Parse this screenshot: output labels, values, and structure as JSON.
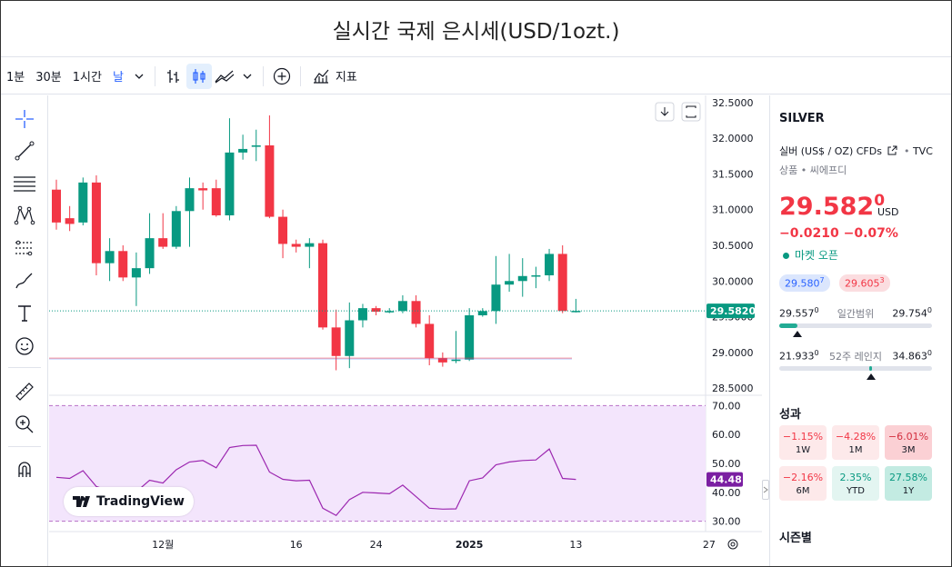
{
  "title": "실시간 국제 은시세(USD/1ozt.)",
  "toolbar": {
    "intervals": [
      "1분",
      "30분",
      "1시간"
    ],
    "active_interval": "날",
    "indicators_label": "지표"
  },
  "sidebar": {
    "symbol": "SILVER",
    "description": "실버 (US$ / OZ) CFDs",
    "source": "TVC",
    "category": "상품 • 씨에프디",
    "price_main": "29.582",
    "price_small": "0",
    "currency": "USD",
    "change": "−0.0210  −0.07%",
    "market_status": "마켓 오픈",
    "bid": "29.580",
    "bid_sup": "7",
    "ask": "29.605",
    "ask_sup": "3",
    "day_range": {
      "low": "29.557",
      "low_sup": "0",
      "label": "일간범위",
      "high": "29.754",
      "high_sup": "0"
    },
    "week52_range": {
      "low": "21.933",
      "low_sup": "0",
      "label": "52주 레인지",
      "high": "34.863",
      "high_sup": "0"
    },
    "day_range_fill": 0.12,
    "week52_position": 0.59,
    "performance_title": "성과",
    "performance": [
      {
        "value": "−1.15%",
        "period": "1W",
        "tone": "neg1"
      },
      {
        "value": "−4.28%",
        "period": "1M",
        "tone": "neg1"
      },
      {
        "value": "−6.01%",
        "period": "3M",
        "tone": "neg2"
      },
      {
        "value": "−2.16%",
        "period": "6M",
        "tone": "neg1"
      },
      {
        "value": "2.35%",
        "period": "YTD",
        "tone": "pos1"
      },
      {
        "value": "27.58%",
        "period": "1Y",
        "tone": "pos2"
      }
    ],
    "seasonal_title": "시즌별"
  },
  "logo_text": "TradingView",
  "colors": {
    "up": "#089981",
    "down": "#f23645",
    "rsi": "#9c27b0",
    "rsi_band": "#f3e5fc",
    "price_line": "#089981"
  },
  "chart_data": [
    {
      "type": "candlestick",
      "ylim": [
        28.4,
        32.6
      ],
      "y_ticks": [
        "32.5000",
        "32.0000",
        "31.5000",
        "31.0000",
        "30.5000",
        "30.0000",
        "29.5000",
        "29.0000",
        "28.5000"
      ],
      "last_price_label": "29.5820",
      "last_price": 29.582,
      "x_tick_labels": [
        "12월",
        "16",
        "24",
        "2025",
        "13",
        "27"
      ],
      "candles": [
        {
          "o": 31.28,
          "h": 31.42,
          "l": 30.72,
          "c": 30.82
        },
        {
          "o": 30.88,
          "h": 31.05,
          "l": 30.7,
          "c": 30.8
        },
        {
          "o": 30.82,
          "h": 31.45,
          "l": 30.78,
          "c": 31.38
        },
        {
          "o": 31.38,
          "h": 31.48,
          "l": 30.08,
          "c": 30.25
        },
        {
          "o": 30.25,
          "h": 30.6,
          "l": 30.0,
          "c": 30.42
        },
        {
          "o": 30.42,
          "h": 30.5,
          "l": 30.0,
          "c": 30.05
        },
        {
          "o": 30.05,
          "h": 30.4,
          "l": 29.65,
          "c": 30.18
        },
        {
          "o": 30.18,
          "h": 30.95,
          "l": 30.1,
          "c": 30.6
        },
        {
          "o": 30.6,
          "h": 30.95,
          "l": 30.45,
          "c": 30.48
        },
        {
          "o": 30.48,
          "h": 31.05,
          "l": 30.45,
          "c": 30.98
        },
        {
          "o": 30.98,
          "h": 31.45,
          "l": 30.48,
          "c": 31.3
        },
        {
          "o": 31.3,
          "h": 31.38,
          "l": 31.0,
          "c": 31.27
        },
        {
          "o": 31.3,
          "h": 31.42,
          "l": 30.9,
          "c": 30.92
        },
        {
          "o": 30.92,
          "h": 32.28,
          "l": 30.85,
          "c": 31.8
        },
        {
          "o": 31.8,
          "h": 32.05,
          "l": 31.7,
          "c": 31.85
        },
        {
          "o": 31.88,
          "h": 32.12,
          "l": 31.68,
          "c": 31.9
        },
        {
          "o": 31.9,
          "h": 32.32,
          "l": 30.88,
          "c": 30.9
        },
        {
          "o": 30.9,
          "h": 31.0,
          "l": 30.32,
          "c": 30.52
        },
        {
          "o": 30.52,
          "h": 30.58,
          "l": 30.4,
          "c": 30.48
        },
        {
          "o": 30.48,
          "h": 30.6,
          "l": 30.18,
          "c": 30.53
        },
        {
          "o": 30.53,
          "h": 30.58,
          "l": 29.32,
          "c": 29.35
        },
        {
          "o": 29.35,
          "h": 29.6,
          "l": 28.75,
          "c": 28.95
        },
        {
          "o": 28.95,
          "h": 29.7,
          "l": 28.78,
          "c": 29.45
        },
        {
          "o": 29.45,
          "h": 29.68,
          "l": 29.35,
          "c": 29.62
        },
        {
          "o": 29.62,
          "h": 29.65,
          "l": 29.52,
          "c": 29.57
        },
        {
          "o": 29.57,
          "h": 29.62,
          "l": 29.55,
          "c": 29.58
        },
        {
          "o": 29.58,
          "h": 29.8,
          "l": 29.55,
          "c": 29.72
        },
        {
          "o": 29.72,
          "h": 29.8,
          "l": 29.35,
          "c": 29.4
        },
        {
          "o": 29.4,
          "h": 29.52,
          "l": 28.82,
          "c": 28.92
        },
        {
          "o": 28.92,
          "h": 29.0,
          "l": 28.8,
          "c": 28.86
        },
        {
          "o": 28.88,
          "h": 29.3,
          "l": 28.85,
          "c": 28.9
        },
        {
          "o": 28.9,
          "h": 29.62,
          "l": 28.88,
          "c": 29.52
        },
        {
          "o": 29.52,
          "h": 29.62,
          "l": 29.5,
          "c": 29.58
        },
        {
          "o": 29.58,
          "h": 30.35,
          "l": 29.4,
          "c": 29.95
        },
        {
          "o": 29.95,
          "h": 30.38,
          "l": 29.85,
          "c": 30.0
        },
        {
          "o": 30.0,
          "h": 30.32,
          "l": 29.78,
          "c": 30.07
        },
        {
          "o": 30.07,
          "h": 30.2,
          "l": 29.9,
          "c": 30.08
        },
        {
          "o": 30.08,
          "h": 30.45,
          "l": 30.0,
          "c": 30.38
        },
        {
          "o": 30.38,
          "h": 30.5,
          "l": 29.55,
          "c": 29.58
        },
        {
          "o": 29.58,
          "h": 29.75,
          "l": 29.56,
          "c": 29.582
        }
      ]
    },
    {
      "type": "line",
      "name": "RSI",
      "ylim": [
        28,
        72
      ],
      "y_ticks": [
        "70.00",
        "60.00",
        "50.00",
        "40.00",
        "30.00"
      ],
      "band": [
        30,
        70
      ],
      "last_value_label": "44.48",
      "values": [
        45.2,
        44.8,
        47.5,
        42.0,
        40.5,
        39.5,
        40.2,
        44.2,
        43.2,
        47.8,
        50.5,
        51.0,
        48.5,
        55.5,
        56.2,
        56.3,
        47.0,
        44.5,
        44.0,
        44.2,
        34.5,
        32.0,
        37.5,
        40.0,
        39.8,
        39.5,
        42.5,
        38.5,
        34.5,
        34.2,
        34.3,
        44.0,
        45.0,
        49.5,
        50.5,
        51.0,
        51.2,
        55.0,
        44.8,
        44.48
      ]
    }
  ]
}
